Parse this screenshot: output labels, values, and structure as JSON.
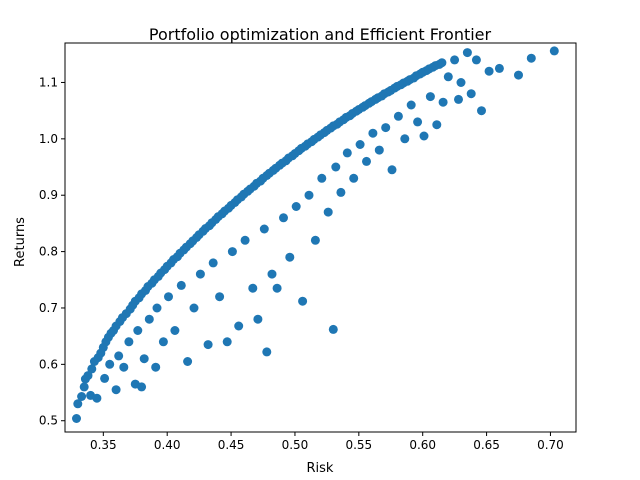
{
  "chart_data": {
    "type": "scatter",
    "title": "Portfolio optimization and Efficient Frontier",
    "xlabel": "Risk",
    "ylabel": "Returns",
    "xlim": [
      0.32,
      0.72
    ],
    "ylim": [
      0.48,
      1.17
    ],
    "xticks": [
      0.35,
      0.4,
      0.45,
      0.5,
      0.55,
      0.6,
      0.65,
      0.7
    ],
    "xtick_labels": [
      "0.35",
      "0.40",
      "0.45",
      "0.50",
      "0.55",
      "0.60",
      "0.65",
      "0.70"
    ],
    "yticks": [
      0.5,
      0.6,
      0.7,
      0.8,
      0.9,
      1.0,
      1.1
    ],
    "ytick_labels": [
      "0.5",
      "0.6",
      "0.7",
      "0.8",
      "0.9",
      "1.0",
      "1.1"
    ],
    "grid": false,
    "marker_color": "#1f77b4",
    "series": [
      {
        "points": [
          [
            0.329,
            0.504
          ],
          [
            0.33,
            0.53
          ],
          [
            0.333,
            0.543
          ],
          [
            0.335,
            0.56
          ],
          [
            0.336,
            0.574
          ],
          [
            0.338,
            0.58
          ],
          [
            0.34,
            0.545
          ],
          [
            0.341,
            0.592
          ],
          [
            0.343,
            0.605
          ],
          [
            0.345,
            0.54
          ],
          [
            0.346,
            0.612
          ],
          [
            0.348,
            0.62
          ],
          [
            0.35,
            0.63
          ],
          [
            0.351,
            0.575
          ],
          [
            0.352,
            0.64
          ],
          [
            0.354,
            0.648
          ],
          [
            0.355,
            0.6
          ],
          [
            0.356,
            0.655
          ],
          [
            0.358,
            0.66
          ],
          [
            0.36,
            0.555
          ],
          [
            0.36,
            0.668
          ],
          [
            0.362,
            0.615
          ],
          [
            0.363,
            0.676
          ],
          [
            0.365,
            0.683
          ],
          [
            0.366,
            0.595
          ],
          [
            0.368,
            0.69
          ],
          [
            0.37,
            0.64
          ],
          [
            0.371,
            0.698
          ],
          [
            0.373,
            0.705
          ],
          [
            0.375,
            0.565
          ],
          [
            0.375,
            0.712
          ],
          [
            0.377,
            0.66
          ],
          [
            0.378,
            0.718
          ],
          [
            0.38,
            0.56
          ],
          [
            0.38,
            0.725
          ],
          [
            0.382,
            0.61
          ],
          [
            0.383,
            0.731
          ],
          [
            0.385,
            0.738
          ],
          [
            0.386,
            0.68
          ],
          [
            0.388,
            0.744
          ],
          [
            0.39,
            0.75
          ],
          [
            0.391,
            0.595
          ],
          [
            0.392,
            0.7
          ],
          [
            0.393,
            0.756
          ],
          [
            0.395,
            0.762
          ],
          [
            0.397,
            0.64
          ],
          [
            0.398,
            0.768
          ],
          [
            0.4,
            0.774
          ],
          [
            0.401,
            0.72
          ],
          [
            0.403,
            0.78
          ],
          [
            0.405,
            0.786
          ],
          [
            0.406,
            0.66
          ],
          [
            0.408,
            0.791
          ],
          [
            0.41,
            0.797
          ],
          [
            0.411,
            0.74
          ],
          [
            0.413,
            0.803
          ],
          [
            0.415,
            0.808
          ],
          [
            0.416,
            0.605
          ],
          [
            0.418,
            0.814
          ],
          [
            0.42,
            0.819
          ],
          [
            0.421,
            0.7
          ],
          [
            0.423,
            0.825
          ],
          [
            0.425,
            0.83
          ],
          [
            0.426,
            0.76
          ],
          [
            0.428,
            0.836
          ],
          [
            0.43,
            0.841
          ],
          [
            0.432,
            0.635
          ],
          [
            0.433,
            0.846
          ],
          [
            0.435,
            0.851
          ],
          [
            0.436,
            0.78
          ],
          [
            0.438,
            0.857
          ],
          [
            0.44,
            0.862
          ],
          [
            0.441,
            0.72
          ],
          [
            0.443,
            0.867
          ],
          [
            0.445,
            0.872
          ],
          [
            0.447,
            0.64
          ],
          [
            0.448,
            0.877
          ],
          [
            0.45,
            0.882
          ],
          [
            0.451,
            0.8
          ],
          [
            0.453,
            0.887
          ],
          [
            0.455,
            0.892
          ],
          [
            0.456,
            0.668
          ],
          [
            0.458,
            0.897
          ],
          [
            0.46,
            0.902
          ],
          [
            0.461,
            0.82
          ],
          [
            0.463,
            0.907
          ],
          [
            0.465,
            0.911
          ],
          [
            0.467,
            0.735
          ],
          [
            0.468,
            0.916
          ],
          [
            0.47,
            0.921
          ],
          [
            0.471,
            0.68
          ],
          [
            0.473,
            0.925
          ],
          [
            0.475,
            0.93
          ],
          [
            0.476,
            0.84
          ],
          [
            0.478,
            0.935
          ],
          [
            0.478,
            0.622
          ],
          [
            0.48,
            0.939
          ],
          [
            0.482,
            0.76
          ],
          [
            0.483,
            0.944
          ],
          [
            0.485,
            0.948
          ],
          [
            0.486,
            0.735
          ],
          [
            0.488,
            0.953
          ],
          [
            0.49,
            0.957
          ],
          [
            0.491,
            0.86
          ],
          [
            0.493,
            0.961
          ],
          [
            0.495,
            0.966
          ],
          [
            0.496,
            0.79
          ],
          [
            0.498,
            0.97
          ],
          [
            0.5,
            0.974
          ],
          [
            0.501,
            0.88
          ],
          [
            0.503,
            0.979
          ],
          [
            0.505,
            0.983
          ],
          [
            0.506,
            0.712
          ],
          [
            0.508,
            0.987
          ],
          [
            0.51,
            0.991
          ],
          [
            0.511,
            0.9
          ],
          [
            0.513,
            0.995
          ],
          [
            0.515,
            0.999
          ],
          [
            0.516,
            0.82
          ],
          [
            0.518,
            1.003
          ],
          [
            0.52,
            1.007
          ],
          [
            0.521,
            0.93
          ],
          [
            0.523,
            1.011
          ],
          [
            0.525,
            1.015
          ],
          [
            0.526,
            0.87
          ],
          [
            0.528,
            1.019
          ],
          [
            0.53,
            1.023
          ],
          [
            0.53,
            0.662
          ],
          [
            0.532,
            0.95
          ],
          [
            0.533,
            1.026
          ],
          [
            0.535,
            1.03
          ],
          [
            0.536,
            0.905
          ],
          [
            0.538,
            1.034
          ],
          [
            0.54,
            1.038
          ],
          [
            0.541,
            0.975
          ],
          [
            0.543,
            1.041
          ],
          [
            0.545,
            1.045
          ],
          [
            0.546,
            0.93
          ],
          [
            0.548,
            1.049
          ],
          [
            0.55,
            1.052
          ],
          [
            0.551,
            0.99
          ],
          [
            0.553,
            1.056
          ],
          [
            0.555,
            1.059
          ],
          [
            0.556,
            0.96
          ],
          [
            0.558,
            1.063
          ],
          [
            0.56,
            1.066
          ],
          [
            0.561,
            1.01
          ],
          [
            0.563,
            1.07
          ],
          [
            0.565,
            1.073
          ],
          [
            0.566,
            0.98
          ],
          [
            0.568,
            1.076
          ],
          [
            0.57,
            1.08
          ],
          [
            0.571,
            1.02
          ],
          [
            0.573,
            1.083
          ],
          [
            0.575,
            1.086
          ],
          [
            0.576,
            0.945
          ],
          [
            0.578,
            1.09
          ],
          [
            0.58,
            1.093
          ],
          [
            0.581,
            1.04
          ],
          [
            0.583,
            1.096
          ],
          [
            0.585,
            1.099
          ],
          [
            0.586,
            1.0
          ],
          [
            0.588,
            1.102
          ],
          [
            0.59,
            1.105
          ],
          [
            0.591,
            1.06
          ],
          [
            0.593,
            1.108
          ],
          [
            0.595,
            1.112
          ],
          [
            0.596,
            1.03
          ],
          [
            0.598,
            1.115
          ],
          [
            0.6,
            1.118
          ],
          [
            0.601,
            1.005
          ],
          [
            0.603,
            1.121
          ],
          [
            0.605,
            1.124
          ],
          [
            0.606,
            1.075
          ],
          [
            0.608,
            1.127
          ],
          [
            0.61,
            1.13
          ],
          [
            0.611,
            1.025
          ],
          [
            0.613,
            1.132
          ],
          [
            0.615,
            1.135
          ],
          [
            0.616,
            1.065
          ],
          [
            0.62,
            1.11
          ],
          [
            0.625,
            1.14
          ],
          [
            0.628,
            1.07
          ],
          [
            0.63,
            1.1
          ],
          [
            0.635,
            1.153
          ],
          [
            0.638,
            1.08
          ],
          [
            0.642,
            1.14
          ],
          [
            0.646,
            1.05
          ],
          [
            0.652,
            1.12
          ],
          [
            0.66,
            1.125
          ],
          [
            0.675,
            1.113
          ],
          [
            0.685,
            1.143
          ],
          [
            0.703,
            1.156
          ]
        ]
      }
    ]
  }
}
